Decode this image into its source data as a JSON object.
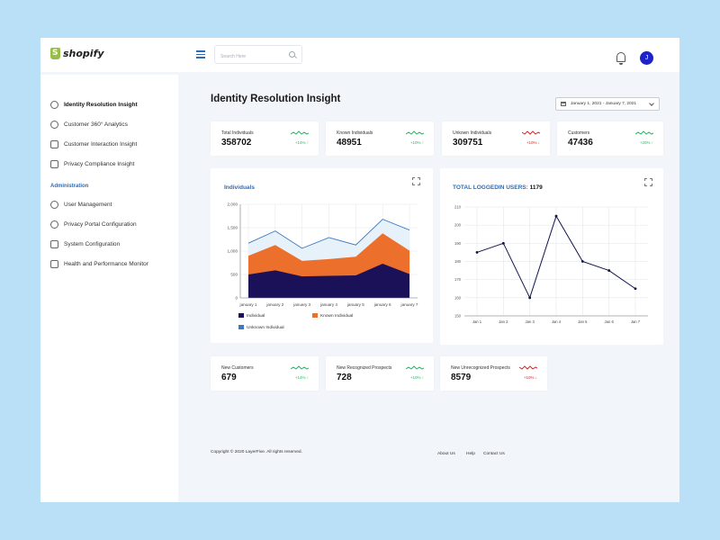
{
  "app": {
    "brand": "shopify",
    "user_initial": "J"
  },
  "search": {
    "placeholder": "Search Here"
  },
  "sidebar": {
    "items": [
      {
        "label": "Identity Resolution Insight",
        "icon": "settings-network-icon"
      },
      {
        "label": "Customer 360° Analytics",
        "icon": "user-icon"
      },
      {
        "label": "Customer Interaction Insight",
        "icon": "monitor-icon"
      },
      {
        "label": "Privacy Compliance Insight",
        "icon": "browser-lock-icon"
      }
    ],
    "section": "Administration",
    "admin_items": [
      {
        "label": "User Management",
        "icon": "user-management-icon"
      },
      {
        "label": "Privacy Portal Configuration",
        "icon": "cloud-lock-icon"
      },
      {
        "label": "System Configuration",
        "icon": "system-config-icon"
      },
      {
        "label": "Health and Performance Monitor",
        "icon": "heartbeat-icon"
      }
    ]
  },
  "page": {
    "title": "Identity Resolution Insight",
    "date_range": "January 1, 2021 - January 7, 2021"
  },
  "stats_top": [
    {
      "label": "Total Individuals",
      "value": "358702",
      "trend": "+14%",
      "dir": "up"
    },
    {
      "label": "Known Individuals",
      "value": "48951",
      "trend": "+10%",
      "dir": "up"
    },
    {
      "label": "Unkown Individuals",
      "value": "309751",
      "trend": "+10%",
      "dir": "down"
    },
    {
      "label": "Customers",
      "value": "47436",
      "trend": "+20%",
      "dir": "up"
    }
  ],
  "stats_bottom": [
    {
      "label": "New Customers",
      "value": "679",
      "trend": "+14%",
      "dir": "up"
    },
    {
      "label": "New Recognized Prospects",
      "value": "728",
      "trend": "+10%",
      "dir": "up"
    },
    {
      "label": "New Unrecognized Prospects",
      "value": "8579",
      "trend": "+10%",
      "dir": "down"
    }
  ],
  "colors": {
    "accent": "#2d6cb5",
    "up": "#29b564",
    "down": "#d32b2b",
    "individual": "#1b1158",
    "known": "#ec6f2b",
    "unknown": "#3b7bbf"
  },
  "individuals_panel": {
    "title": "Individuals"
  },
  "logged_panel": {
    "title": "TOTAL LOGGEDIN USERS:",
    "count": "1179"
  },
  "chart_data": [
    {
      "type": "area",
      "title": "Individuals",
      "categories": [
        "january 1",
        "january 2",
        "january 3",
        "january 4",
        "january 5",
        "january 6",
        "january 7"
      ],
      "series": [
        {
          "name": "Individual",
          "values": [
            500,
            590,
            460,
            470,
            480,
            730,
            510
          ]
        },
        {
          "name": "Known Individual",
          "values": [
            900,
            1130,
            790,
            830,
            880,
            1380,
            1010
          ]
        },
        {
          "name": "Unknown Individual",
          "values": [
            1170,
            1430,
            1060,
            1290,
            1130,
            1680,
            1450
          ]
        }
      ],
      "ylim": [
        0,
        2000
      ],
      "yticks": [
        "0",
        "500",
        "1,000",
        "1,500",
        "2,000"
      ],
      "legend": "bottom"
    },
    {
      "type": "line",
      "title": "TOTAL LOGGEDIN USERS: 1179",
      "categories": [
        "Jan 1",
        "Jan 2",
        "Jan 3",
        "Jan 4",
        "Jan 5",
        "Jan 6",
        "Jan 7"
      ],
      "values": [
        185,
        190,
        160,
        205,
        180,
        175,
        165
      ],
      "ylim": [
        150,
        210
      ],
      "yticks": [
        "150",
        "160",
        "170",
        "180",
        "190",
        "200",
        "210"
      ],
      "grid": true
    }
  ],
  "footer": {
    "copyright": "Copyright © 2020 LayerFive. All rights reserved.",
    "links": [
      "About Us",
      "Help",
      "Contact Us"
    ]
  }
}
